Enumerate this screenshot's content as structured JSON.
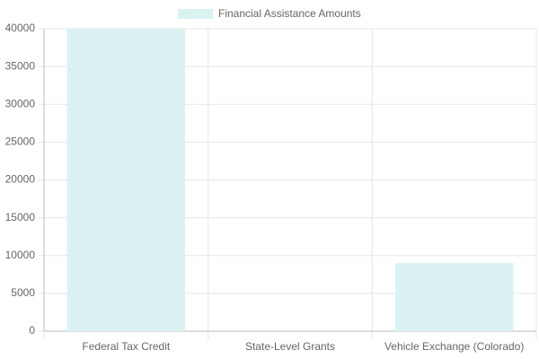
{
  "chart_data": {
    "type": "bar",
    "categories": [
      "Federal Tax Credit",
      "State-Level Grants",
      "Vehicle Exchange (Colorado)"
    ],
    "series": [
      {
        "name": "Financial Assistance Amounts",
        "color": "#dbf2f2",
        "values": [
          40000,
          0,
          9000
        ]
      }
    ],
    "ylim": [
      0,
      40000
    ],
    "yticks": [
      0,
      5000,
      10000,
      15000,
      20000,
      25000,
      30000,
      35000,
      40000
    ],
    "grid": true,
    "legend": "top"
  }
}
